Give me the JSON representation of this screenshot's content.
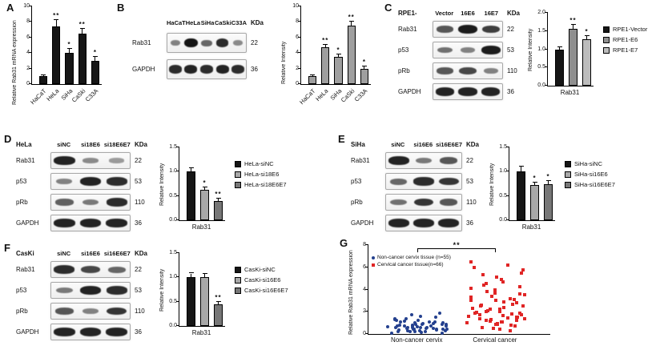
{
  "panels": {
    "A": "A",
    "B": "B",
    "C": "C",
    "D": "D",
    "E": "E",
    "F": "F",
    "G": "G"
  },
  "colors": {
    "bar_black": "#161616",
    "bar_gray": "#9f9f9f",
    "bar_lightgray": "#bcbcbc",
    "bar_darkgray": "#777777",
    "scatter_blue": "#24408e",
    "scatter_red": "#e02525"
  },
  "blots": [
    {
      "id": "blot-B",
      "title": "",
      "lanes": [
        "HaCaT",
        "HeLa",
        "SiHa",
        "CaSki",
        "C33A"
      ],
      "kda_header": "KDa",
      "rows": [
        {
          "protein": "Rab31",
          "kda": "22",
          "bands": [
            0.35,
            1.0,
            0.5,
            0.85,
            0.3
          ]
        },
        {
          "protein": "GAPDH",
          "kda": "36",
          "bands": [
            0.85,
            0.9,
            0.85,
            0.9,
            0.85
          ]
        }
      ]
    },
    {
      "id": "blot-C",
      "title": "RPE1-",
      "lanes": [
        "Vector",
        "16E6",
        "16E7"
      ],
      "kda_header": "KDa",
      "rows": [
        {
          "protein": "Rab31",
          "kda": "22",
          "bands": [
            0.6,
            0.95,
            0.75
          ]
        },
        {
          "protein": "p53",
          "kda": "53",
          "bands": [
            0.45,
            0.35,
            0.95
          ]
        },
        {
          "protein": "pRb",
          "kda": "110",
          "bands": [
            0.6,
            0.7,
            0.35
          ]
        },
        {
          "protein": "GAPDH",
          "kda": "36",
          "bands": [
            0.9,
            0.9,
            0.9
          ]
        }
      ]
    },
    {
      "id": "blot-D",
      "title": "HeLa",
      "lanes": [
        "siNC",
        "si18E6",
        "si18E6E7"
      ],
      "kda_header": "KDa",
      "rows": [
        {
          "protein": "Rab31",
          "kda": "22",
          "bands": [
            0.9,
            0.3,
            0.2
          ]
        },
        {
          "protein": "p53",
          "kda": "53",
          "bands": [
            0.35,
            0.9,
            0.85
          ]
        },
        {
          "protein": "pRb",
          "kda": "110",
          "bands": [
            0.55,
            0.4,
            0.85
          ]
        },
        {
          "protein": "GAPDH",
          "kda": "36",
          "bands": [
            0.9,
            0.9,
            0.9
          ]
        }
      ]
    },
    {
      "id": "blot-E",
      "title": "SiHa",
      "lanes": [
        "siNC",
        "si16E6",
        "si16E6E7"
      ],
      "kda_header": "KDa",
      "rows": [
        {
          "protein": "Rab31",
          "kda": "22",
          "bands": [
            0.9,
            0.4,
            0.6
          ]
        },
        {
          "protein": "p53",
          "kda": "53",
          "bands": [
            0.5,
            0.85,
            0.8
          ]
        },
        {
          "protein": "pRb",
          "kda": "110",
          "bands": [
            0.45,
            0.8,
            0.6
          ]
        },
        {
          "protein": "GAPDH",
          "kda": "36",
          "bands": [
            0.9,
            0.9,
            0.9
          ]
        }
      ]
    },
    {
      "id": "blot-F",
      "title": "CasKi",
      "lanes": [
        "siNC",
        "si16E6",
        "si16E6E7"
      ],
      "kda_header": "KDa",
      "rows": [
        {
          "protein": "Rab31",
          "kda": "22",
          "bands": [
            0.85,
            0.7,
            0.5
          ]
        },
        {
          "protein": "p53",
          "kda": "53",
          "bands": [
            0.4,
            0.9,
            0.85
          ]
        },
        {
          "protein": "pRb",
          "kda": "110",
          "bands": [
            0.6,
            0.35,
            0.8
          ]
        },
        {
          "protein": "GAPDH",
          "kda": "36",
          "bands": [
            0.9,
            0.9,
            0.9
          ]
        }
      ]
    }
  ],
  "chart_data": [
    {
      "id": "chart-A",
      "type": "bar",
      "ylabel": "Relative Rab31 mRNA expression",
      "ylim": [
        0,
        10
      ],
      "yticks": [
        "0",
        "2",
        "4",
        "6",
        "8",
        "10"
      ],
      "categories": [
        "HaCaT",
        "HeLa",
        "SiHa",
        "CaSki",
        "C33A"
      ],
      "values": [
        1.0,
        7.4,
        4.0,
        6.5,
        3.0
      ],
      "errors": [
        0.15,
        0.8,
        0.5,
        0.6,
        0.5
      ],
      "sig": [
        "",
        "**",
        "*",
        "**",
        "*"
      ],
      "bar_color": "#161616",
      "rotate_labels": true
    },
    {
      "id": "chart-B",
      "type": "bar",
      "ylabel": "Relative Intensity",
      "ylim": [
        0,
        10
      ],
      "yticks": [
        "0",
        "2",
        "4",
        "6",
        "8",
        "10"
      ],
      "categories": [
        "HaCaT",
        "HeLa",
        "SiHa",
        "CaSki",
        "C33A"
      ],
      "values": [
        1.0,
        4.7,
        3.5,
        7.5,
        2.0
      ],
      "errors": [
        0.1,
        0.4,
        0.35,
        0.5,
        0.25
      ],
      "sig": [
        "",
        "**",
        "*",
        "**",
        "*"
      ],
      "bar_color": "#9f9f9f",
      "rotate_labels": true
    },
    {
      "id": "chart-C",
      "type": "grouped-bar",
      "ylabel": "Relative Intensity",
      "ylim": [
        0,
        2
      ],
      "yticks": [
        "0.0",
        "0.5",
        "1.0",
        "1.5",
        "2.0"
      ],
      "group_label": "Rab31",
      "series": [
        {
          "name": "RPE1-Vector",
          "value": 1.0,
          "error": 0.06,
          "sig": "",
          "color": "#161616"
        },
        {
          "name": "RPE1-E6",
          "value": 1.55,
          "error": 0.12,
          "sig": "**",
          "color": "#8f8f8f"
        },
        {
          "name": "RPE1-E7",
          "value": 1.27,
          "error": 0.1,
          "sig": "*",
          "color": "#bcbcbc"
        }
      ]
    },
    {
      "id": "chart-D",
      "type": "grouped-bar",
      "ylabel": "Relative Intensity",
      "ylim": [
        0,
        1.5
      ],
      "yticks": [
        "0.0",
        "0.5",
        "1.0",
        "1.5"
      ],
      "group_label": "Rab31",
      "series": [
        {
          "name": "HeLa-siNC",
          "value": 1.0,
          "error": 0.07,
          "sig": "",
          "color": "#161616"
        },
        {
          "name": "HeLa-si18E6",
          "value": 0.62,
          "error": 0.05,
          "sig": "*",
          "color": "#a8a8a8"
        },
        {
          "name": "HeLa-si18E6E7",
          "value": 0.4,
          "error": 0.04,
          "sig": "**",
          "color": "#777777"
        }
      ]
    },
    {
      "id": "chart-E",
      "type": "grouped-bar",
      "ylabel": "Relative Intensity",
      "ylim": [
        0,
        1.5
      ],
      "yticks": [
        "0.0",
        "0.5",
        "1.0",
        "1.5"
      ],
      "group_label": "Rab31",
      "series": [
        {
          "name": "SiHa-siNC",
          "value": 1.0,
          "error": 0.1,
          "sig": "",
          "color": "#161616"
        },
        {
          "name": "SiHa-si16E6",
          "value": 0.72,
          "error": 0.06,
          "sig": "*",
          "color": "#a8a8a8"
        },
        {
          "name": "SiHa-si16E6E7",
          "value": 0.74,
          "error": 0.07,
          "sig": "*",
          "color": "#777777"
        }
      ]
    },
    {
      "id": "chart-F",
      "type": "grouped-bar",
      "ylabel": "Relative Intensity",
      "ylim": [
        0,
        1.5
      ],
      "yticks": [
        "0.0",
        "0.5",
        "1.0",
        "1.5"
      ],
      "group_label": "Rab31",
      "series": [
        {
          "name": "CasKi-siNC",
          "value": 1.0,
          "error": 0.08,
          "sig": "",
          "color": "#161616"
        },
        {
          "name": "CasKi-si16E6",
          "value": 1.0,
          "error": 0.07,
          "sig": "",
          "color": "#a8a8a8"
        },
        {
          "name": "CasKi-si16E6E7",
          "value": 0.45,
          "error": 0.05,
          "sig": "**",
          "color": "#777777"
        }
      ]
    },
    {
      "id": "chart-G",
      "type": "scatter",
      "ylabel": "Relative Rab31 mRNA expression",
      "ylim": [
        0,
        8
      ],
      "yticks": [
        "0",
        "2",
        "4",
        "6",
        "8"
      ],
      "sig": "**",
      "groups": [
        {
          "label": "Non-cancer cervix",
          "legend_label": "Non-cancer cervix tissue (n=55)",
          "marker": "circle",
          "color": "#24408e",
          "values": [
            0.05,
            0.1,
            0.15,
            0.2,
            0.2,
            0.25,
            0.25,
            0.3,
            0.3,
            0.3,
            0.35,
            0.35,
            0.4,
            0.4,
            0.4,
            0.45,
            0.45,
            0.5,
            0.5,
            0.5,
            0.55,
            0.55,
            0.6,
            0.6,
            0.6,
            0.65,
            0.65,
            0.7,
            0.7,
            0.7,
            0.75,
            0.75,
            0.8,
            0.8,
            0.85,
            0.85,
            0.9,
            0.9,
            0.95,
            0.95,
            1.0,
            1.0,
            1.05,
            1.1,
            1.1,
            1.15,
            1.2,
            1.25,
            1.3,
            1.35,
            1.4,
            1.5,
            1.6,
            1.75,
            1.9
          ]
        },
        {
          "label": "Cervical cancer",
          "legend_label": "Cervical cancer tissue(n=66)",
          "marker": "square",
          "color": "#e02525",
          "values": [
            0.3,
            0.4,
            0.5,
            0.6,
            0.7,
            0.8,
            0.85,
            0.9,
            0.95,
            1.0,
            1.05,
            1.1,
            1.15,
            1.2,
            1.25,
            1.3,
            1.35,
            1.4,
            1.45,
            1.5,
            1.55,
            1.6,
            1.65,
            1.7,
            1.75,
            1.8,
            1.85,
            1.9,
            1.95,
            2.0,
            2.05,
            2.1,
            2.2,
            2.25,
            2.3,
            2.4,
            2.5,
            2.55,
            2.6,
            2.7,
            2.8,
            2.9,
            3.0,
            3.05,
            3.1,
            3.2,
            3.3,
            3.4,
            3.5,
            3.6,
            3.7,
            3.8,
            4.0,
            4.1,
            4.25,
            4.4,
            4.55,
            4.7,
            4.9,
            5.1,
            5.3,
            5.5,
            5.8,
            6.0,
            6.2,
            6.5
          ]
        }
      ]
    }
  ]
}
